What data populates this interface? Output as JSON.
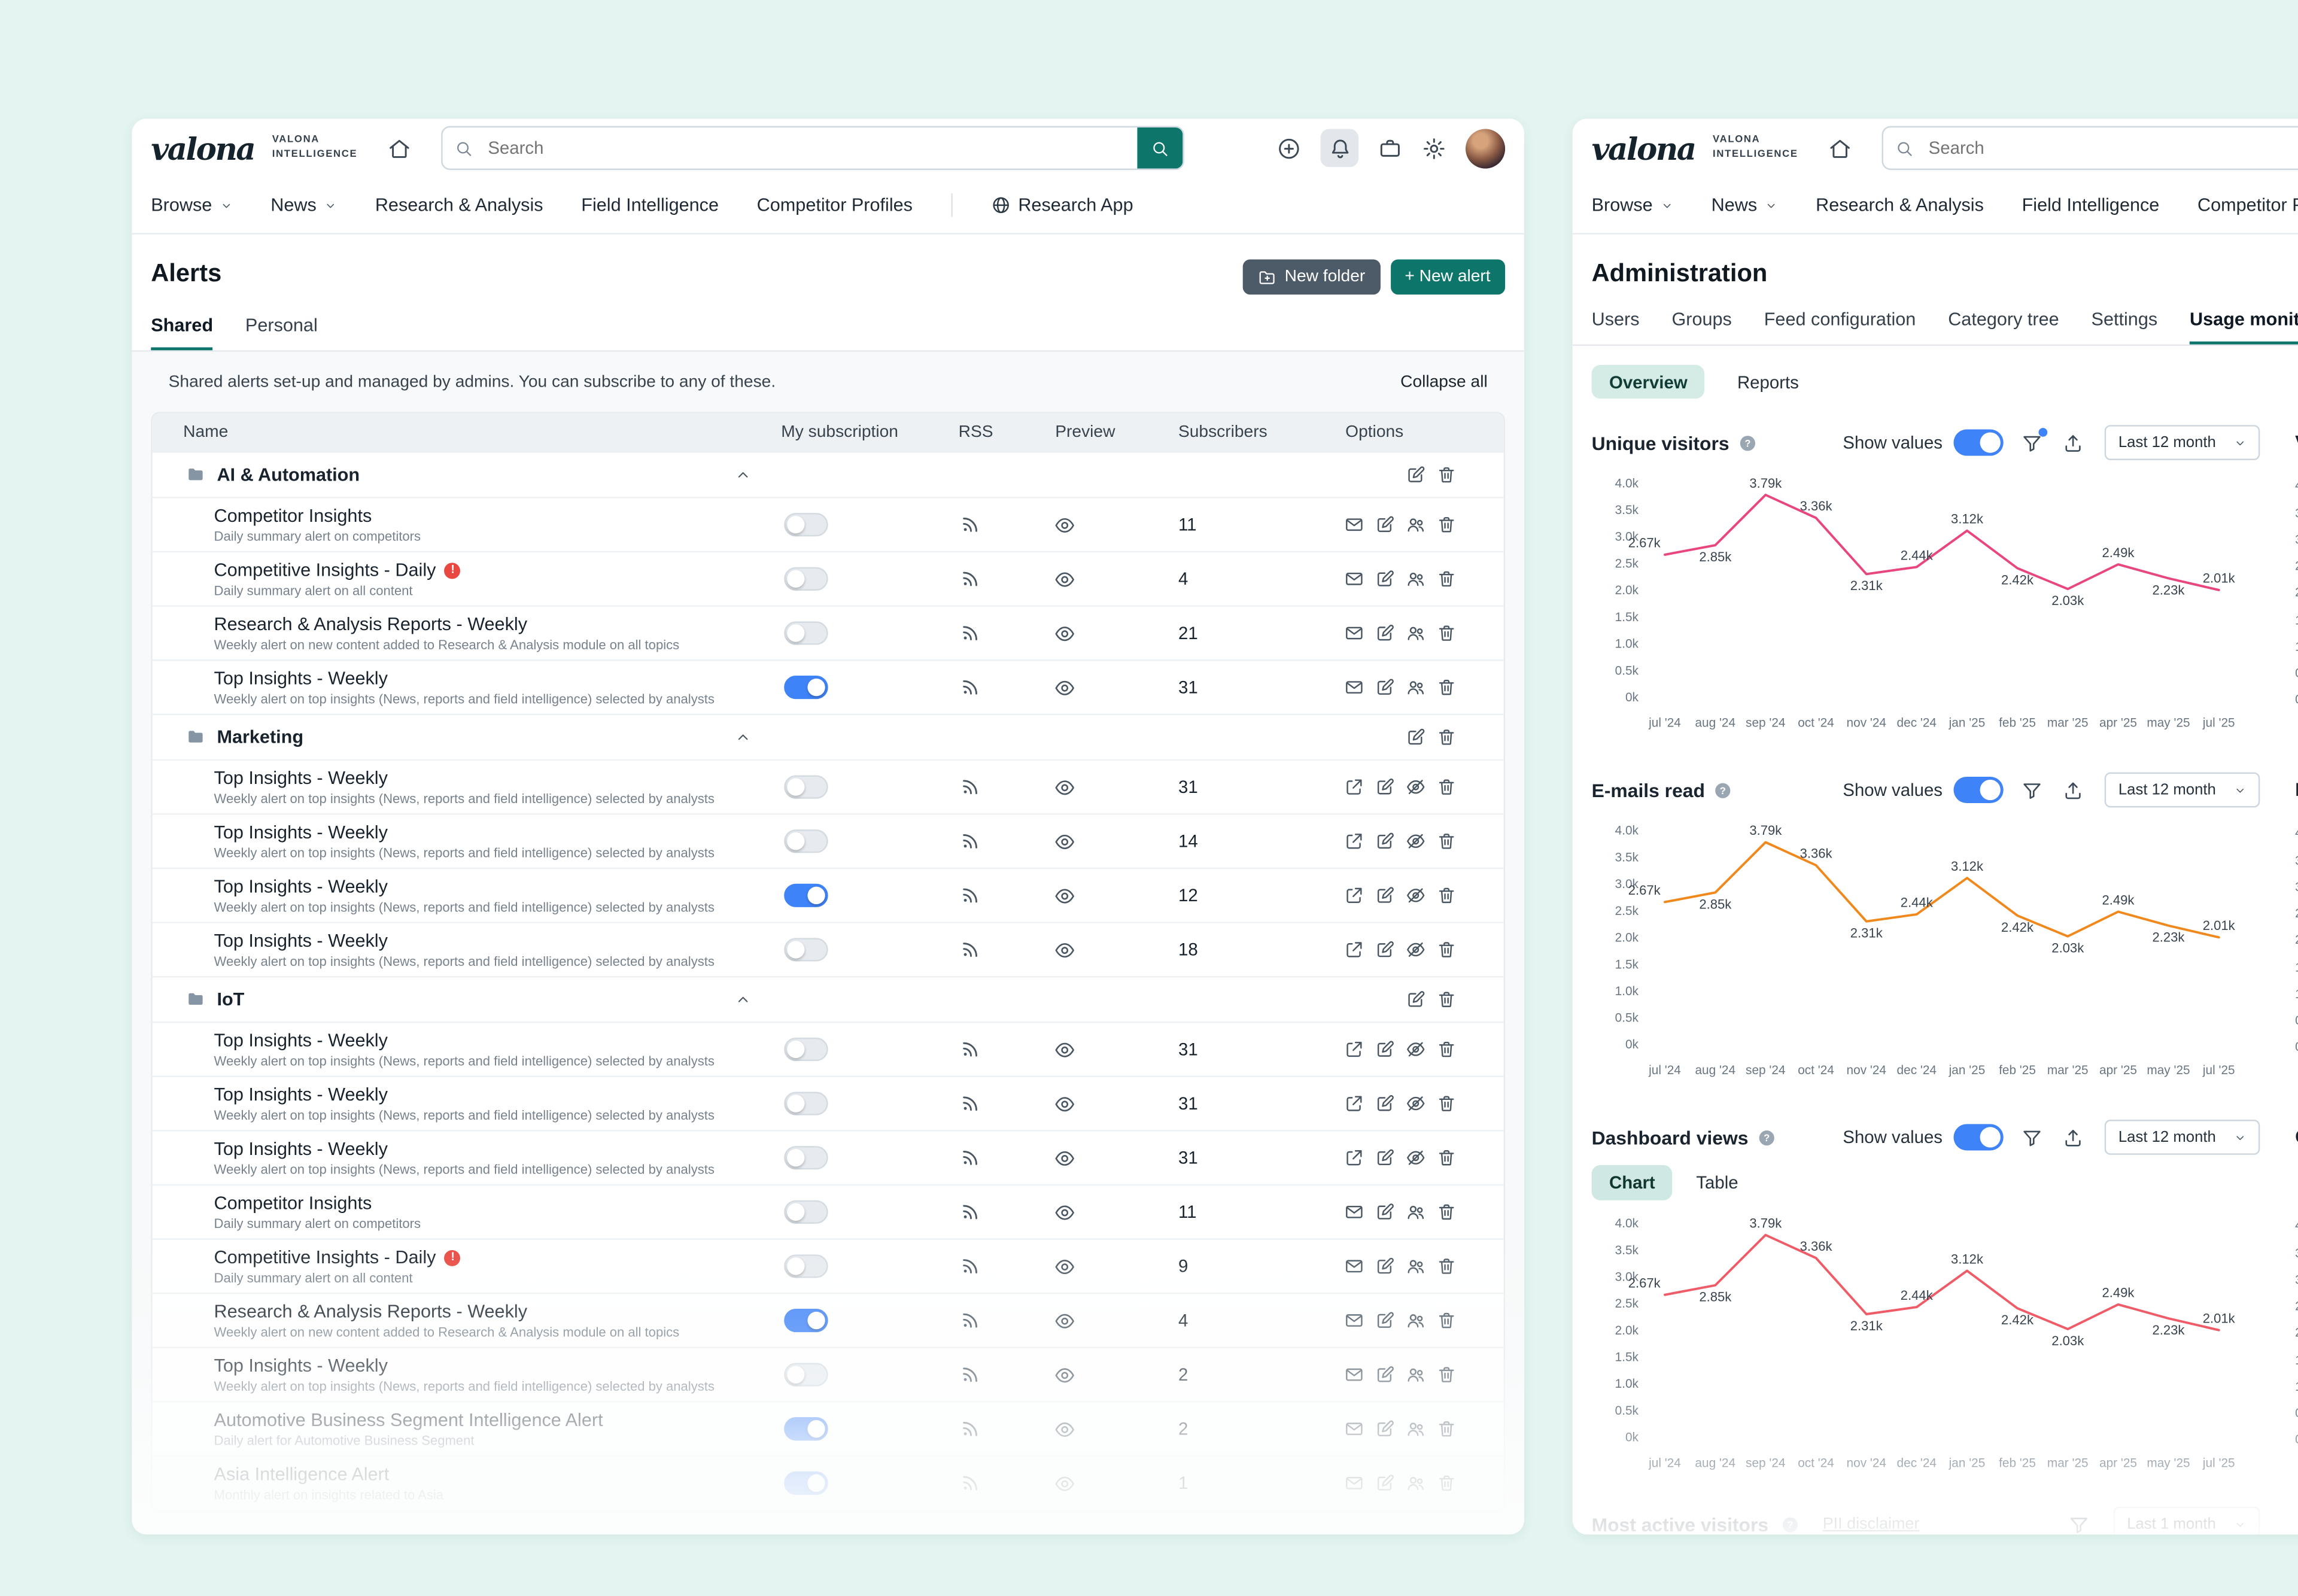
{
  "app": {
    "brand_script": "valona",
    "brand_caps_line1": "VALONA",
    "brand_caps_line2": "INTELLIGENCE",
    "search_placeholder": "Search"
  },
  "nav": {
    "items": [
      {
        "label": "Browse",
        "caret": true
      },
      {
        "label": "News",
        "caret": true
      },
      {
        "label": "Research & Analysis",
        "caret": false
      },
      {
        "label": "Field Intelligence",
        "caret": false
      },
      {
        "label": "Competitor Profiles",
        "caret": false
      }
    ],
    "research_app_label": "Research App"
  },
  "alerts_page": {
    "title": "Alerts",
    "new_folder_label": "New folder",
    "new_alert_label": "+ New alert",
    "tabs": [
      "Shared",
      "Personal"
    ],
    "active_tab": "Shared",
    "banner": "Shared alerts set-up and managed by admins. You can subscribe to any of these.",
    "collapse_all_label": "Collapse all",
    "columns": [
      "Name",
      "My subscription",
      "RSS",
      "Preview",
      "Subscribers",
      "Options"
    ],
    "rows": [
      {
        "type": "folder",
        "name": "AI & Automation"
      },
      {
        "type": "alert",
        "name": "Competitor Insights",
        "description": "Daily summary alert on competitors",
        "warning": false,
        "subscription": "off",
        "subscribers": "11",
        "options": [
          "mail",
          "edit",
          "people",
          "trash"
        ]
      },
      {
        "type": "alert",
        "name": "Competitive Insights - Daily",
        "description": "Daily summary alert on all content",
        "warning": true,
        "subscription": "off",
        "subscribers": "4",
        "options": [
          "mail",
          "edit",
          "people",
          "trash"
        ]
      },
      {
        "type": "alert",
        "name": "Research & Analysis Reports - Weekly",
        "description": "Weekly alert on new content added to Research & Analysis module on all topics",
        "warning": false,
        "subscription": "off",
        "subscribers": "21",
        "options": [
          "mail",
          "edit",
          "people",
          "trash"
        ]
      },
      {
        "type": "alert",
        "name": "Top Insights - Weekly",
        "description": "Weekly alert on top insights (News, reports and field intelligence) selected by analysts",
        "warning": false,
        "subscription": "on",
        "subscribers": "31",
        "options": [
          "mail",
          "edit",
          "people",
          "trash"
        ]
      },
      {
        "type": "folder",
        "name": "Marketing"
      },
      {
        "type": "alert",
        "name": "Top Insights - Weekly",
        "description": "Weekly alert on top insights (News, reports and field intelligence) selected by analysts",
        "warning": false,
        "subscription": "off",
        "subscribers": "31",
        "options": [
          "external",
          "edit",
          "eye-off",
          "trash"
        ]
      },
      {
        "type": "alert",
        "name": "Top Insights - Weekly",
        "description": "Weekly alert on top insights (News, reports and field intelligence) selected by analysts",
        "warning": false,
        "subscription": "off",
        "subscribers": "14",
        "options": [
          "external",
          "edit",
          "eye-off",
          "trash"
        ]
      },
      {
        "type": "alert",
        "name": "Top Insights - Weekly",
        "description": "Weekly alert on top insights (News, reports and field intelligence) selected by analysts",
        "warning": false,
        "subscription": "on",
        "subscribers": "12",
        "options": [
          "external",
          "edit",
          "eye-off",
          "trash"
        ]
      },
      {
        "type": "alert",
        "name": "Top Insights - Weekly",
        "description": "Weekly alert on top insights (News, reports and field intelligence) selected by analysts",
        "warning": false,
        "subscription": "off",
        "subscribers": "18",
        "options": [
          "external",
          "edit",
          "eye-off",
          "trash"
        ]
      },
      {
        "type": "folder",
        "name": "IoT"
      },
      {
        "type": "alert",
        "name": "Top Insights - Weekly",
        "description": "Weekly alert on top insights (News, reports and field intelligence) selected by analysts",
        "warning": false,
        "subscription": "off",
        "subscribers": "31",
        "options": [
          "external",
          "edit",
          "eye-off",
          "trash"
        ]
      },
      {
        "type": "alert",
        "name": "Top Insights - Weekly",
        "description": "Weekly alert on top insights (News, reports and field intelligence) selected by analysts",
        "warning": false,
        "subscription": "off",
        "subscribers": "31",
        "options": [
          "external",
          "edit",
          "eye-off",
          "trash"
        ]
      },
      {
        "type": "alert",
        "name": "Top Insights - Weekly",
        "description": "Weekly alert on top insights (News, reports and field intelligence) selected by analysts",
        "warning": false,
        "subscription": "off",
        "subscribers": "31",
        "options": [
          "external",
          "edit",
          "eye-off",
          "trash"
        ]
      },
      {
        "type": "alert",
        "name": "Competitor Insights",
        "description": "Daily summary alert on competitors",
        "warning": false,
        "subscription": "off",
        "subscribers": "11",
        "options": [
          "mail",
          "edit",
          "people",
          "trash"
        ]
      },
      {
        "type": "alert",
        "name": "Competitive Insights - Daily",
        "description": "Daily summary alert on all content",
        "warning": true,
        "subscription": "off",
        "subscribers": "9",
        "options": [
          "mail",
          "edit",
          "people",
          "trash"
        ]
      },
      {
        "type": "alert",
        "name": "Research & Analysis Reports - Weekly",
        "description": "Weekly alert on new content added to Research & Analysis module on all topics",
        "warning": false,
        "subscription": "on",
        "subscribers": "4",
        "options": [
          "mail",
          "edit",
          "people",
          "trash"
        ]
      },
      {
        "type": "alert",
        "name": "Top Insights - Weekly",
        "description": "Weekly alert on top insights (News, reports and field intelligence) selected by analysts",
        "warning": false,
        "subscription": "off",
        "subscribers": "2",
        "options": [
          "mail",
          "edit",
          "people",
          "trash"
        ]
      },
      {
        "type": "alert",
        "name": "Automotive Business Segment Intelligence Alert",
        "description": "Daily alert for Automotive Business Segment",
        "warning": false,
        "subscription": "on",
        "subscribers": "2",
        "options": [
          "mail",
          "edit",
          "people",
          "trash"
        ]
      },
      {
        "type": "alert",
        "name": "Asia Intelligence Alert",
        "description": "Monthly alert on insights related to Asia",
        "warning": false,
        "subscription": "on",
        "subscribers": "1",
        "options": [
          "mail",
          "edit",
          "people",
          "trash"
        ]
      }
    ]
  },
  "admin_page": {
    "title": "Administration",
    "tabs": [
      "Users",
      "Groups",
      "Feed configuration",
      "Category tree",
      "Settings",
      "Usage monitor"
    ],
    "active_tab": "Usage monitor",
    "subtabs": [
      "Overview",
      "Reports"
    ],
    "active_subtab": "Overview",
    "show_values_label": "Show values",
    "charts": [
      {
        "title": "Unique visitors",
        "color": "#e8467c",
        "range": "Last 12 month",
        "filter_dot": true
      },
      {
        "title": "E-mails read",
        "color": "#f0881b",
        "range": "Last 12 month",
        "filter_dot": false
      },
      {
        "title": "Dashboard views",
        "color": "#ef5b67",
        "range": "Last 12 month",
        "filter_dot": false,
        "segmented": [
          "Chart",
          "Table"
        ],
        "active_segment": "Chart"
      }
    ],
    "partial_second_column_titles": [
      "V",
      "It",
      "C"
    ],
    "most_active_label": "Most active visitors",
    "pii_disclaimer_label": "PII disclaimer",
    "most_active_range": "Last 1 month"
  },
  "chart_data": {
    "type": "line",
    "x_labels": [
      "jul '24",
      "aug '24",
      "sep '24",
      "oct '24",
      "nov '24",
      "dec '24",
      "jan '25",
      "feb '25",
      "mar '25",
      "apr '25",
      "may '25",
      "jul '25"
    ],
    "values_k": [
      2.67,
      2.85,
      3.79,
      3.36,
      2.31,
      2.44,
      3.12,
      2.42,
      2.03,
      2.49,
      2.23,
      2.01
    ],
    "value_labels": [
      "2.67k",
      "2.85k",
      "3.79k",
      "3.36k",
      "2.31k",
      "2.44k",
      "3.12k",
      "2.42k",
      "2.03k",
      "2.49k",
      "2.23k",
      "2.01k"
    ],
    "label_positions": [
      "above",
      "below",
      "above",
      "above",
      "below",
      "above",
      "above",
      "below",
      "below",
      "above",
      "below",
      "above"
    ],
    "y_ticks": [
      "4.0k",
      "3.5k",
      "3.0k",
      "2.5k",
      "2.0k",
      "1.5k",
      "1.0k",
      "0.5k",
      "0k"
    ],
    "ylim": [
      0,
      4000
    ],
    "grid": false,
    "legend": "none",
    "series": [
      {
        "name": "Unique visitors",
        "color": "#e8467c"
      },
      {
        "name": "E-mails read",
        "color": "#f0881b"
      },
      {
        "name": "Dashboard views",
        "color": "#ef5b67"
      }
    ]
  }
}
